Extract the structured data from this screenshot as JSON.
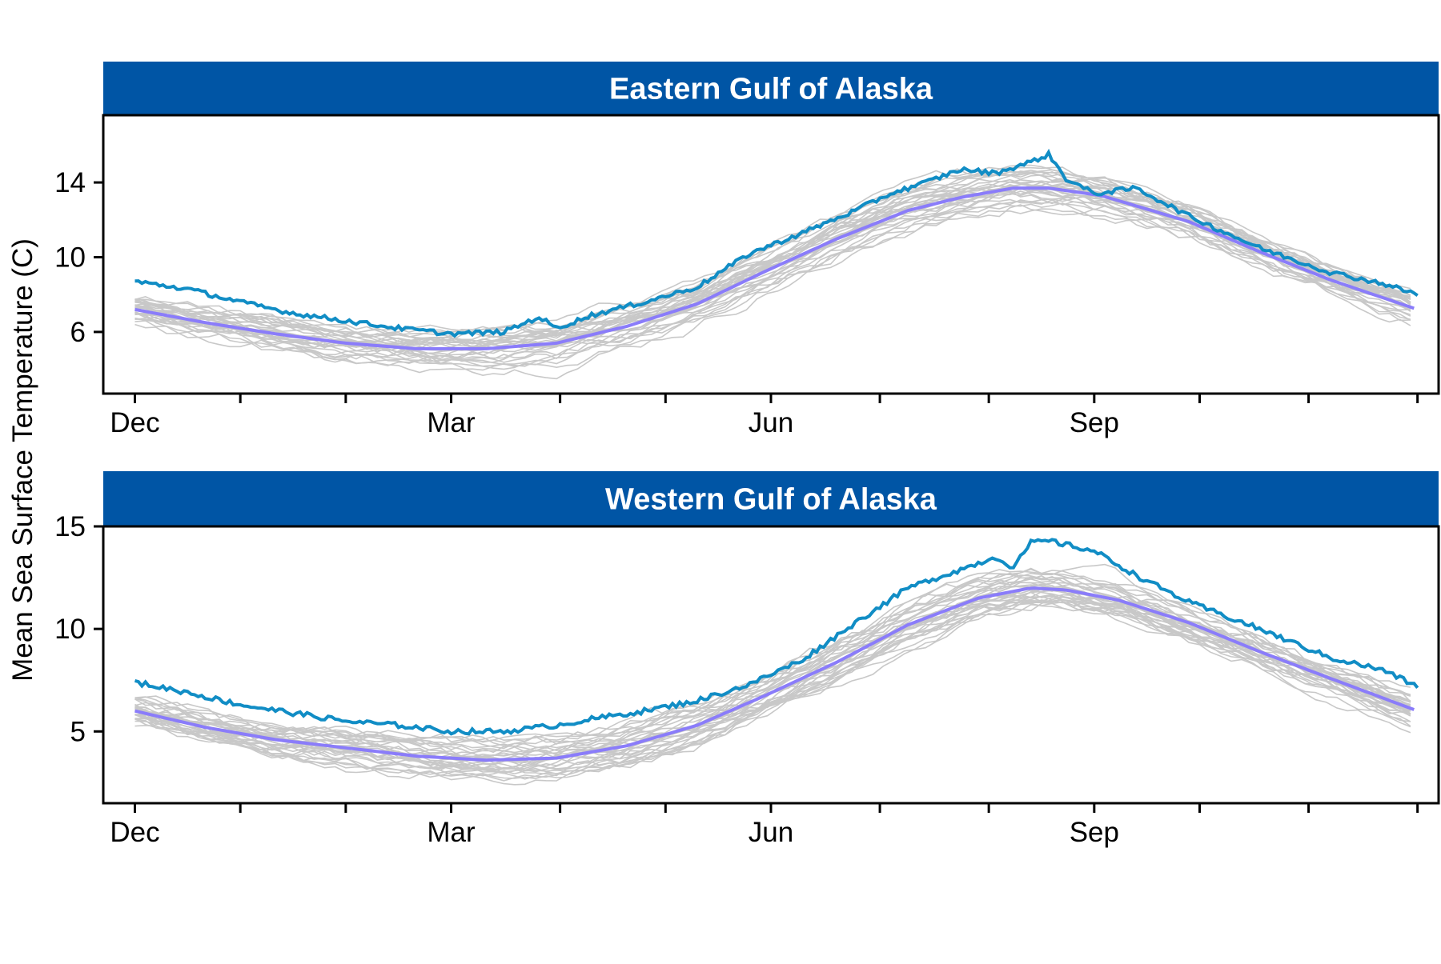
{
  "ylabel": "Mean Sea Surface Temperature (C)",
  "colors": {
    "strip": "#0055a5",
    "strip_text": "#ffffff",
    "history_lines": "#c8c8c8",
    "current_year": "#118dc5",
    "climatology_mean": "#8a7cfa",
    "axis": "#000000"
  },
  "chart_data": [
    {
      "type": "line",
      "title": "Eastern Gulf of Alaska",
      "xlabel": "",
      "ylabel": "Mean Sea Surface Temperature (C)",
      "x_ticks": [
        "Dec",
        "Mar",
        "Jun",
        "Sep"
      ],
      "x_tick_days": [
        0,
        90,
        181,
        273
      ],
      "minor_tick_days": [
        30,
        60,
        121,
        151,
        212,
        243,
        303,
        334,
        365
      ],
      "xlim": [
        -9,
        371
      ],
      "ylim": [
        2.7,
        17.6
      ],
      "yticks": [
        6,
        10,
        14
      ],
      "grid": false,
      "legend": "none",
      "series": [
        {
          "role": "current_year",
          "x": [
            0,
            15,
            30,
            45,
            60,
            75,
            90,
            105,
            115,
            120,
            130,
            145,
            160,
            175,
            190,
            205,
            215,
            225,
            235,
            245,
            255,
            260,
            265,
            273,
            285,
            300,
            320,
            340,
            355,
            365
          ],
          "values": [
            8.7,
            8.3,
            7.6,
            7.0,
            6.6,
            6.2,
            5.9,
            6.0,
            6.8,
            6.2,
            6.9,
            7.6,
            8.4,
            10.2,
            11.3,
            12.5,
            13.4,
            14.0,
            14.7,
            14.5,
            15.1,
            15.5,
            14.2,
            13.4,
            13.7,
            12.2,
            10.5,
            9.2,
            8.6,
            8.0
          ]
        },
        {
          "role": "climatology_mean",
          "x": [
            0,
            20,
            40,
            60,
            80,
            100,
            120,
            140,
            160,
            180,
            200,
            220,
            235,
            250,
            260,
            275,
            300,
            320,
            340,
            365
          ],
          "values": [
            7.2,
            6.5,
            5.9,
            5.4,
            5.1,
            5.1,
            5.4,
            6.3,
            7.5,
            9.3,
            11.0,
            12.5,
            13.2,
            13.7,
            13.7,
            13.3,
            11.9,
            10.3,
            8.8,
            7.2
          ]
        }
      ]
    },
    {
      "type": "line",
      "title": "Western Gulf of Alaska",
      "xlabel": "",
      "ylabel": "Mean Sea Surface Temperature (C)",
      "x_ticks": [
        "Dec",
        "Mar",
        "Jun",
        "Sep"
      ],
      "x_tick_days": [
        0,
        90,
        181,
        273
      ],
      "minor_tick_days": [
        30,
        60,
        121,
        151,
        212,
        243,
        303,
        334,
        365
      ],
      "xlim": [
        -9,
        371
      ],
      "ylim": [
        1.5,
        15.0
      ],
      "yticks": [
        5,
        10,
        15
      ],
      "grid": false,
      "legend": "none",
      "series": [
        {
          "role": "current_year",
          "x": [
            0,
            15,
            30,
            45,
            60,
            75,
            90,
            105,
            120,
            130,
            145,
            160,
            175,
            190,
            205,
            220,
            235,
            245,
            250,
            255,
            260,
            273,
            285,
            300,
            320,
            340,
            355,
            365
          ],
          "values": [
            7.4,
            6.9,
            6.3,
            5.9,
            5.5,
            5.3,
            5.0,
            5.0,
            5.3,
            5.6,
            6.0,
            6.5,
            7.3,
            8.5,
            10.3,
            12.0,
            12.9,
            13.5,
            13.0,
            14.2,
            14.3,
            13.8,
            12.6,
            11.3,
            10.0,
            8.6,
            8.0,
            7.2
          ]
        },
        {
          "role": "climatology_mean",
          "x": [
            0,
            20,
            40,
            60,
            80,
            100,
            120,
            140,
            160,
            180,
            200,
            220,
            240,
            255,
            265,
            280,
            300,
            320,
            340,
            365
          ],
          "values": [
            6.0,
            5.2,
            4.6,
            4.2,
            3.8,
            3.6,
            3.7,
            4.3,
            5.3,
            6.8,
            8.4,
            10.2,
            11.5,
            12.0,
            11.9,
            11.4,
            10.3,
            8.9,
            7.6,
            6.0
          ]
        }
      ]
    }
  ]
}
